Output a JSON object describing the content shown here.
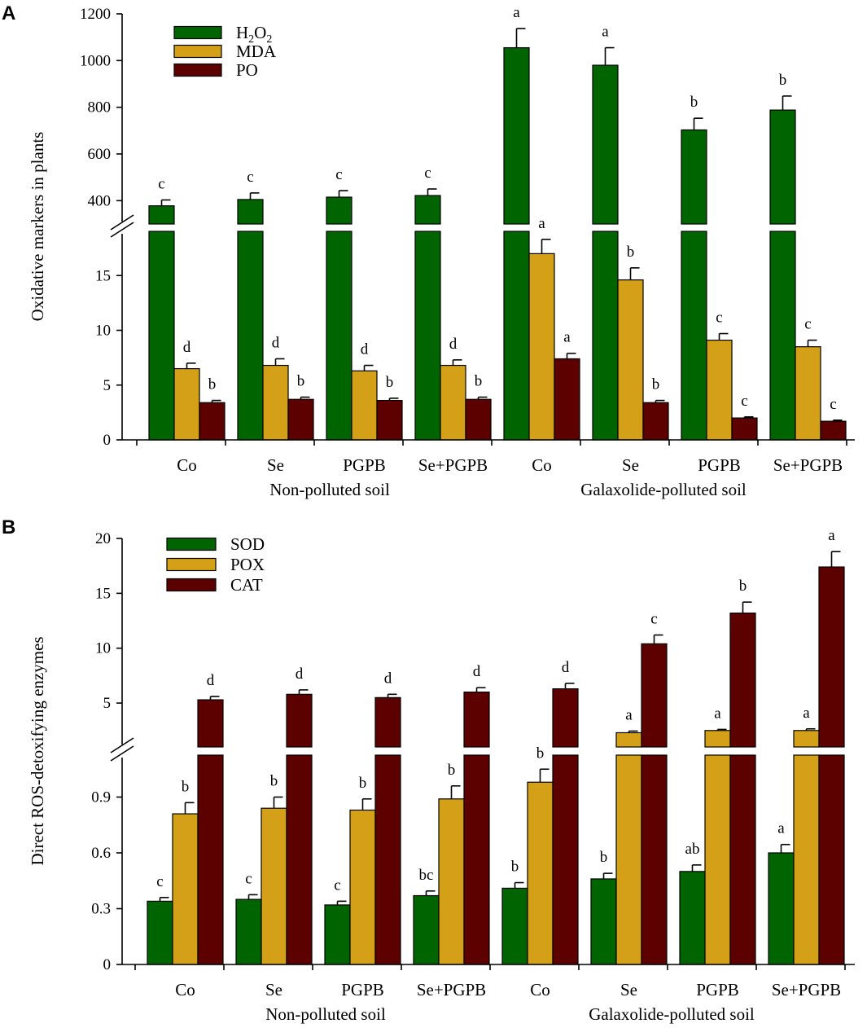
{
  "chart_data": [
    {
      "type": "bar",
      "panel": "A",
      "ylabel": "Oxidative markers in plants",
      "categories": [
        "Co",
        "Se",
        "PGPB",
        "Se+PGPB",
        "Co",
        "Se",
        "PGPB",
        "Se+PGPB"
      ],
      "groups": [
        "Non-polluted soil",
        "Galaxolide-polluted soil"
      ],
      "legend": [
        {
          "name": "H2O2",
          "base": "H",
          "sub1": "2",
          "mid": "O",
          "sub2": "2"
        },
        {
          "name": "MDA"
        },
        {
          "name": "PO"
        }
      ],
      "axis_breaks": {
        "lower": {
          "range": [
            0,
            20
          ],
          "ticks": [
            {
              "v": 0,
              "l": "0"
            },
            {
              "v": 5,
              "l": "5"
            },
            {
              "v": 10,
              "l": "10"
            },
            {
              "v": 15,
              "l": "15"
            }
          ]
        },
        "upper": {
          "range": [
            300,
            1200
          ],
          "ticks": [
            {
              "v": 400,
              "l": "400"
            },
            {
              "v": 600,
              "l": "600"
            },
            {
              "v": 800,
              "l": "800"
            },
            {
              "v": 1000,
              "l": "1000"
            },
            {
              "v": 1200,
              "l": "1200"
            }
          ]
        }
      },
      "series": [
        {
          "name": "H2O2",
          "color": "#006400",
          "values": [
            378,
            405,
            415,
            422,
            1055,
            980,
            703,
            788
          ],
          "errors": [
            25,
            28,
            28,
            28,
            82,
            75,
            50,
            60
          ],
          "letters": [
            "c",
            "c",
            "c",
            "c",
            "a",
            "a",
            "b",
            "b"
          ]
        },
        {
          "name": "MDA",
          "color": "#D4A017",
          "values": [
            6.5,
            6.8,
            6.3,
            6.8,
            17.0,
            14.6,
            9.1,
            8.5
          ],
          "errors": [
            0.5,
            0.6,
            0.5,
            0.5,
            1.3,
            1.1,
            0.6,
            0.6
          ],
          "letters": [
            "d",
            "d",
            "d",
            "d",
            "a",
            "b",
            "c",
            "c"
          ]
        },
        {
          "name": "PO",
          "color": "#5C0000",
          "values": [
            3.4,
            3.7,
            3.6,
            3.7,
            7.4,
            3.4,
            2.0,
            1.7
          ],
          "errors": [
            0.2,
            0.2,
            0.2,
            0.2,
            0.5,
            0.2,
            0.1,
            0.1
          ],
          "letters": [
            "b",
            "b",
            "b",
            "b",
            "a",
            "b",
            "c",
            "c"
          ]
        }
      ]
    },
    {
      "type": "bar",
      "panel": "B",
      "ylabel": "Direct ROS-detoxifying enzymes",
      "categories": [
        "Co",
        "Se",
        "PGPB",
        "Se+PGPB",
        "Co",
        "Se",
        "PGPB",
        "Se+PGPB"
      ],
      "groups": [
        "Non-polluted soil",
        "Galaxolide-polluted soil"
      ],
      "legend": [
        {
          "name": "SOD"
        },
        {
          "name": "POX"
        },
        {
          "name": "CAT"
        }
      ],
      "axis_breaks": {
        "lower": {
          "range": [
            0,
            1.2
          ],
          "ticks": [
            {
              "v": 0,
              "l": "0"
            },
            {
              "v": 0.3,
              "l": "0.3"
            },
            {
              "v": 0.6,
              "l": "0.6"
            },
            {
              "v": 0.9,
              "l": "0.9"
            }
          ]
        },
        "upper": {
          "range": [
            1,
            20
          ],
          "ticks": [
            {
              "v": 5,
              "l": "5"
            },
            {
              "v": 10,
              "l": "10"
            },
            {
              "v": 15,
              "l": "15"
            },
            {
              "v": 20,
              "l": "20"
            }
          ]
        }
      },
      "series": [
        {
          "name": "SOD",
          "color": "#006400",
          "values": [
            0.34,
            0.35,
            0.32,
            0.37,
            0.41,
            0.46,
            0.5,
            0.6
          ],
          "errors": [
            0.02,
            0.025,
            0.02,
            0.025,
            0.03,
            0.03,
            0.035,
            0.045
          ],
          "letters": [
            "c",
            "c",
            "c",
            "bc",
            "b",
            "b",
            "ab",
            "a"
          ]
        },
        {
          "name": "POX",
          "color": "#D4A017",
          "values": [
            0.81,
            0.84,
            0.83,
            0.89,
            0.98,
            2.3,
            2.5,
            2.5
          ],
          "errors": [
            0.06,
            0.06,
            0.06,
            0.07,
            0.07,
            0.15,
            0.1,
            0.15
          ],
          "letters": [
            "b",
            "b",
            "b",
            "b",
            "b",
            "a",
            "a",
            "a"
          ]
        },
        {
          "name": "CAT",
          "color": "#5C0000",
          "values": [
            5.3,
            5.8,
            5.5,
            6.0,
            6.3,
            10.4,
            13.2,
            17.4
          ],
          "errors": [
            0.3,
            0.4,
            0.3,
            0.4,
            0.5,
            0.8,
            1.0,
            1.4
          ],
          "letters": [
            "d",
            "d",
            "d",
            "d",
            "d",
            "c",
            "b",
            "a"
          ]
        }
      ]
    }
  ]
}
